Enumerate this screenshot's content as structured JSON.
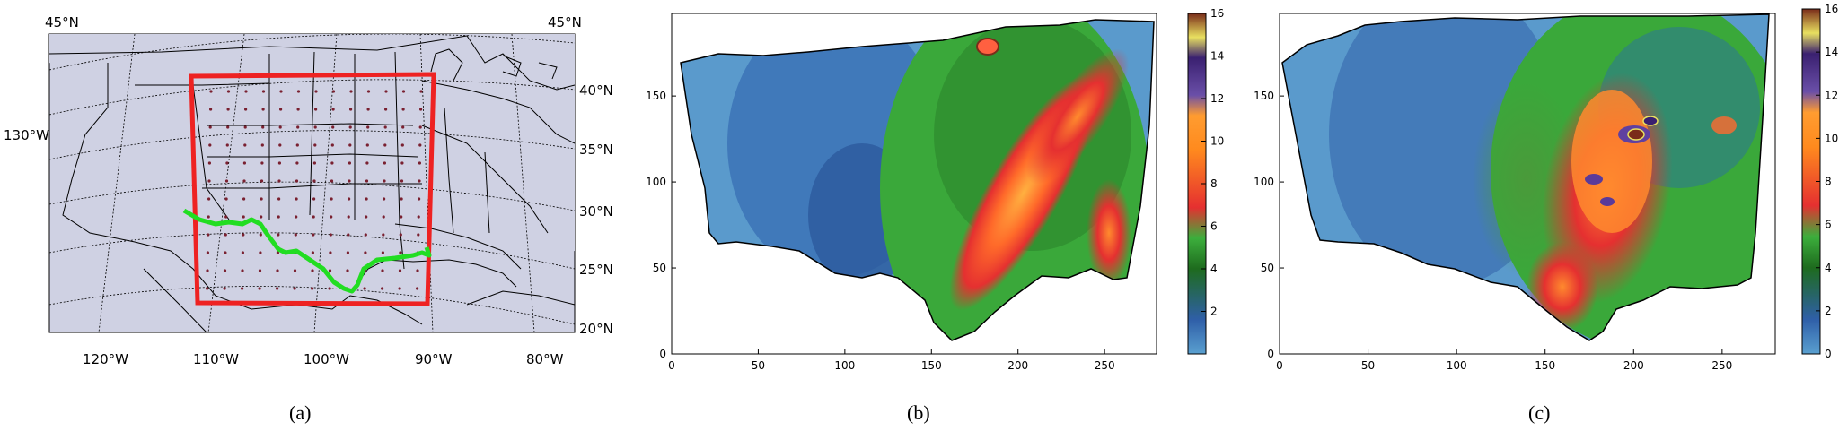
{
  "panel_a": {
    "caption": "(a)",
    "lat_labels_right": [
      "40°N",
      "35°N",
      "30°N",
      "25°N",
      "20°N"
    ],
    "lat_labels_top": [
      "45°N",
      "45°N"
    ],
    "lon_label_left": "130°W",
    "lon_labels_bottom": [
      "120°W",
      "110°W",
      "100°W",
      "90°W",
      "80°W"
    ],
    "colors": {
      "ocean": "#cfd1e3",
      "domain_box": "#ee2222",
      "border_line": "#22dd22",
      "dots": "#7a2030"
    }
  },
  "panel_b": {
    "caption": "(b)",
    "x_ticks": [
      "0",
      "50",
      "100",
      "150",
      "200",
      "250"
    ],
    "y_ticks": [
      "0",
      "50",
      "100",
      "150"
    ],
    "colorbar_ticks": [
      "2",
      "4",
      "6",
      "8",
      "10",
      "12",
      "14",
      "16"
    ]
  },
  "panel_c": {
    "caption": "(c)",
    "x_ticks": [
      "0",
      "50",
      "100",
      "150",
      "200",
      "250"
    ],
    "y_ticks": [
      "0",
      "50",
      "100",
      "150"
    ],
    "colorbar_ticks": [
      "0",
      "2",
      "4",
      "6",
      "8",
      "10",
      "12",
      "14",
      "16"
    ]
  },
  "chart_data": [
    {
      "type": "heatmap",
      "panel": "b",
      "xlim": [
        0,
        280
      ],
      "ylim": [
        0,
        198
      ],
      "clim": [
        0,
        16
      ],
      "colormap": [
        "#5aa0d0",
        "#2f5fa8",
        "#1e6b1e",
        "#3cae3c",
        "#e53030",
        "#ff8a1e",
        "#e8e060",
        "#6040a0",
        "#7a2c1a"
      ],
      "features": [
        {
          "name": "band",
          "x": 180,
          "y": 110,
          "value": 7
        },
        {
          "name": "maximum",
          "x": 180,
          "y": 180,
          "value": 13
        }
      ]
    },
    {
      "type": "heatmap",
      "panel": "c",
      "xlim": [
        0,
        280
      ],
      "ylim": [
        0,
        198
      ],
      "clim": [
        0,
        16
      ],
      "colormap": [
        "#5aa0d0",
        "#2f5fa8",
        "#1e6b1e",
        "#3cae3c",
        "#e53030",
        "#ff8a1e",
        "#e8e060",
        "#6040a0",
        "#7a2c1a"
      ],
      "features": [
        {
          "name": "core",
          "x": 200,
          "y": 125,
          "value": 14
        },
        {
          "name": "core",
          "x": 185,
          "y": 100,
          "value": 12
        }
      ]
    }
  ]
}
